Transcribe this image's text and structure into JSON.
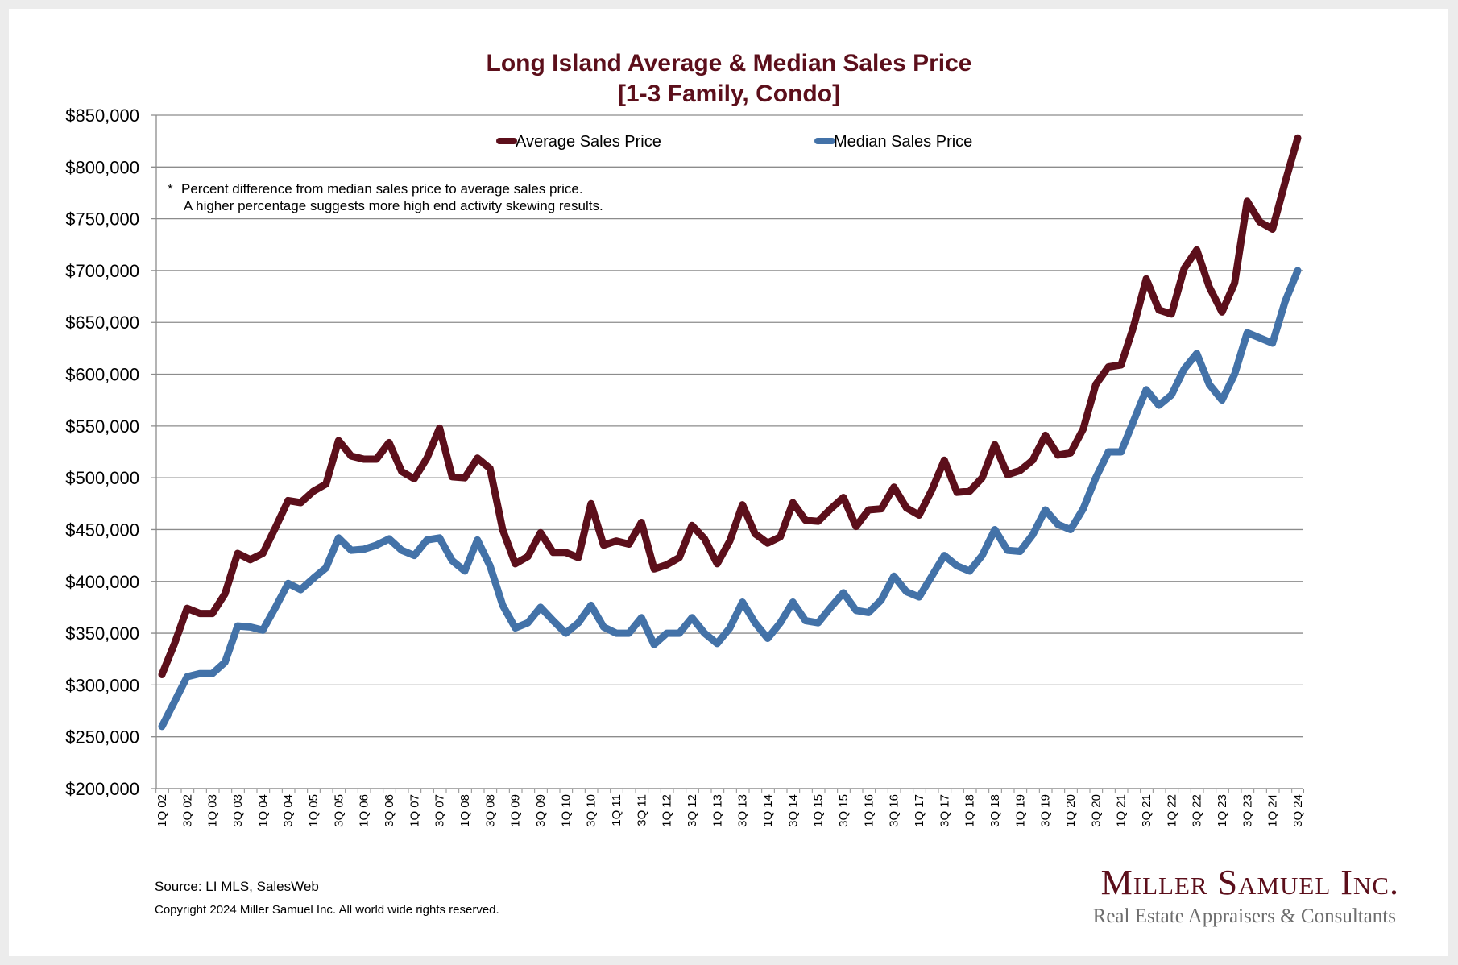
{
  "chart_data": {
    "type": "line",
    "title": "Long Island Average & Median Sales Price",
    "subtitle": "[1-3 Family, Condo]",
    "xlabel": "",
    "ylabel": "",
    "ylim": [
      200000,
      850000
    ],
    "yticks": [
      200000,
      250000,
      300000,
      350000,
      400000,
      450000,
      500000,
      550000,
      600000,
      650000,
      700000,
      750000,
      800000,
      850000
    ],
    "ytick_labels": [
      "$200,000",
      "$250,000",
      "$300,000",
      "$350,000",
      "$400,000",
      "$450,000",
      "$500,000",
      "$550,000",
      "$600,000",
      "$650,000",
      "$700,000",
      "$750,000",
      "$800,000",
      "$850,000"
    ],
    "grid": "horizontal",
    "legend": "top-center",
    "x": [
      "1Q 02",
      "2Q 02",
      "3Q 02",
      "4Q 02",
      "1Q 03",
      "2Q 03",
      "3Q 03",
      "4Q 03",
      "1Q 04",
      "2Q 04",
      "3Q 04",
      "4Q 04",
      "1Q 05",
      "2Q 05",
      "3Q 05",
      "4Q 05",
      "1Q 06",
      "2Q 06",
      "3Q 06",
      "4Q 06",
      "1Q 07",
      "2Q 07",
      "3Q 07",
      "4Q 07",
      "1Q 08",
      "2Q 08",
      "3Q 08",
      "4Q 08",
      "1Q 09",
      "2Q 09",
      "3Q 09",
      "4Q 09",
      "1Q 10",
      "2Q 10",
      "3Q 10",
      "4Q 10",
      "1Q 11",
      "2Q 11",
      "3Q 11",
      "4Q 11",
      "1Q 12",
      "2Q 12",
      "3Q 12",
      "4Q 12",
      "1Q 13",
      "2Q 13",
      "3Q 13",
      "4Q 13",
      "1Q 14",
      "2Q 14",
      "3Q 14",
      "4Q 14",
      "1Q 15",
      "2Q 15",
      "3Q 15",
      "4Q 15",
      "1Q 16",
      "2Q 16",
      "3Q 16",
      "4Q 16",
      "1Q 17",
      "2Q 17",
      "3Q 17",
      "4Q 17",
      "1Q 18",
      "2Q 18",
      "3Q 18",
      "4Q 18",
      "1Q 19",
      "2Q 19",
      "3Q 19",
      "4Q 19",
      "1Q 20",
      "2Q 20",
      "3Q 20",
      "4Q 20",
      "1Q 21",
      "2Q 21",
      "3Q 21",
      "4Q 21",
      "1Q 22",
      "2Q 22",
      "3Q 22",
      "4Q 22",
      "1Q 23",
      "2Q 23",
      "3Q 23",
      "4Q 23",
      "1Q 24",
      "2Q 24",
      "3Q 24"
    ],
    "xtick_labels": [
      "1Q 02",
      "3Q 02",
      "1Q 03",
      "3Q 03",
      "1Q 04",
      "3Q 04",
      "1Q 05",
      "3Q 05",
      "1Q 06",
      "3Q 06",
      "1Q 07",
      "3Q 07",
      "1Q 08",
      "3Q 08",
      "1Q 09",
      "3Q 09",
      "1Q 10",
      "3Q 10",
      "1Q 11",
      "3Q 11",
      "1Q 12",
      "3Q 12",
      "1Q 13",
      "3Q 13",
      "1Q 14",
      "3Q 14",
      "1Q 15",
      "3Q 15",
      "1Q 16",
      "3Q 16",
      "1Q 17",
      "3Q 17",
      "1Q 18",
      "3Q 18",
      "1Q 19",
      "3Q 19",
      "1Q 20",
      "3Q 20",
      "1Q 21",
      "3Q 21",
      "1Q 22",
      "3Q 22",
      "1Q 23",
      "3Q 23",
      "1Q 24",
      "3Q 24"
    ],
    "series": [
      {
        "name": "Average Sales Price",
        "color": "#5c0f1b",
        "values": [
          310000,
          340000,
          374000,
          369000,
          369000,
          388000,
          427000,
          421000,
          427000,
          452000,
          478000,
          476000,
          487000,
          494000,
          536000,
          521000,
          518000,
          518000,
          534000,
          506000,
          499000,
          519000,
          548000,
          501000,
          500000,
          519000,
          509000,
          450000,
          417000,
          424000,
          447000,
          428000,
          428000,
          423000,
          475000,
          435000,
          439000,
          436000,
          457000,
          412000,
          416000,
          423000,
          454000,
          441000,
          417000,
          439000,
          474000,
          446000,
          437000,
          443000,
          476000,
          459000,
          458000,
          470000,
          481000,
          453000,
          469000,
          470000,
          491000,
          471000,
          464000,
          488000,
          517000,
          486000,
          487000,
          500000,
          532000,
          503000,
          507000,
          517000,
          541000,
          522000,
          524000,
          547000,
          590000,
          607000,
          609000,
          646000,
          692000,
          662000,
          658000,
          702000,
          720000,
          684000,
          660000,
          688000,
          767000,
          747000,
          740000,
          785000,
          828000
        ]
      },
      {
        "name": "Median Sales Price",
        "color": "#4372a8",
        "values": [
          260000,
          284000,
          308000,
          311000,
          311000,
          322000,
          357000,
          356000,
          353000,
          375000,
          398000,
          392000,
          403000,
          413000,
          442000,
          430000,
          431000,
          435000,
          441000,
          430000,
          425000,
          440000,
          442000,
          420000,
          410000,
          440000,
          415000,
          377000,
          355000,
          360000,
          375000,
          362000,
          350000,
          360000,
          377000,
          356000,
          350000,
          350000,
          365000,
          339000,
          350000,
          350000,
          365000,
          350000,
          340000,
          355000,
          380000,
          360000,
          345000,
          360000,
          380000,
          362000,
          360000,
          375000,
          389000,
          372000,
          370000,
          382000,
          405000,
          390000,
          385000,
          405000,
          425000,
          415000,
          410000,
          425000,
          450000,
          430000,
          429000,
          445000,
          469000,
          455000,
          450000,
          470000,
          500000,
          525000,
          525000,
          555000,
          585000,
          570000,
          580000,
          605000,
          620000,
          590000,
          575000,
          600000,
          640000,
          635000,
          630000,
          670000,
          700000
        ]
      }
    ],
    "annotation": {
      "marker": "*",
      "line1": "Percent difference from median sales price to average sales price.",
      "line2": "A higher percentage suggests more high end activity skewing results."
    }
  },
  "footer": {
    "source": "Source:  LI MLS, SalesWeb",
    "copyright": "Copyright 2024 Miller Samuel Inc.  All world wide rights reserved."
  },
  "logo": {
    "name": "Miller Samuel Inc.",
    "tagline": "Real Estate Appraisers & Consultants",
    "color": "#5c0f1b"
  }
}
